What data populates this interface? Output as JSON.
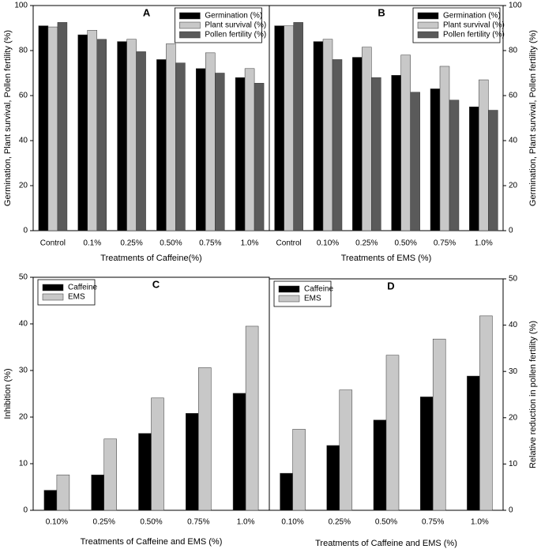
{
  "chart_data": [
    {
      "type": "bar",
      "title": "A",
      "ylabel": "Germination, Plant survival, Pollen fertility (%)",
      "xlabel": "Treatments of Caffeine(%)",
      "categories": [
        "Control",
        "0.1%",
        "0.25%",
        "0.50%",
        "0.75%",
        "1.0%"
      ],
      "series": [
        {
          "name": "Germination (%)",
          "color": "#000000",
          "values": [
            91,
            87,
            84,
            76,
            72,
            68
          ]
        },
        {
          "name": "Plant survival (%)",
          "color": "#c8c8c8",
          "values": [
            90.5,
            89,
            85,
            83,
            79,
            72
          ]
        },
        {
          "name": "Pollen fertility (%)",
          "color": "#5a5a5a",
          "values": [
            92.5,
            85,
            79.5,
            74.5,
            70,
            65.5
          ]
        }
      ],
      "ylim": [
        0,
        100
      ],
      "yticks": [
        0,
        20,
        40,
        60,
        80,
        100
      ],
      "y_axis_side": "left",
      "legend_position": "upper center"
    },
    {
      "type": "bar",
      "title": "B",
      "ylabel": "Germination, Plant survival, Pollen fertility (%)",
      "xlabel": "Treatments of EMS (%)",
      "categories": [
        "Control",
        "0.10%",
        "0.25%",
        "0.50%",
        "0.75%",
        "1.0%"
      ],
      "series": [
        {
          "name": "Germination (%)",
          "color": "#000000",
          "values": [
            91,
            84,
            77,
            69,
            63,
            55
          ]
        },
        {
          "name": "Plant survival (%)",
          "color": "#c8c8c8",
          "values": [
            91,
            85,
            81.5,
            78,
            73,
            67
          ]
        },
        {
          "name": "Pollen fertility (%)",
          "color": "#5a5a5a",
          "values": [
            92.5,
            76,
            68,
            61.5,
            58,
            53.5
          ]
        }
      ],
      "ylim": [
        0,
        100
      ],
      "yticks": [
        0,
        20,
        40,
        60,
        80,
        100
      ],
      "y_axis_side": "right",
      "legend_position": "upper right"
    },
    {
      "type": "bar",
      "title": "C",
      "ylabel": "Inhibition (%)",
      "xlabel": "Treatments of Caffeine and EMS (%)",
      "categories": [
        "0.10%",
        "0.25%",
        "0.50%",
        "0.75%",
        "1.0%"
      ],
      "series": [
        {
          "name": "Caffeine",
          "color": "#000000",
          "values": [
            4.3,
            7.6,
            16.5,
            20.8,
            25.1
          ]
        },
        {
          "name": "EMS",
          "color": "#c8c8c8",
          "values": [
            7.6,
            15.3,
            24.1,
            30.6,
            39.5
          ]
        }
      ],
      "ylim": [
        0,
        50
      ],
      "yticks": [
        0,
        10,
        20,
        30,
        40,
        50
      ],
      "y_axis_side": "left",
      "legend_position": "upper left"
    },
    {
      "type": "bar",
      "title": "D",
      "ylabel": "Relative reduction in pollen fertility (%)",
      "xlabel": "Treatments of Caffeine and EMS (%)",
      "categories": [
        "0.10%",
        "0.25%",
        "0.50%",
        "0.75%",
        "1.0%"
      ],
      "series": [
        {
          "name": "Caffeine",
          "color": "#000000",
          "values": [
            8,
            14,
            19.5,
            24.5,
            29
          ]
        },
        {
          "name": "EMS",
          "color": "#c8c8c8",
          "values": [
            17.5,
            26,
            33.5,
            37,
            42
          ]
        }
      ],
      "ylim": [
        0,
        50
      ],
      "yticks": [
        0,
        10,
        20,
        30,
        40,
        50
      ],
      "y_axis_side": "right",
      "legend_position": "upper left"
    }
  ]
}
